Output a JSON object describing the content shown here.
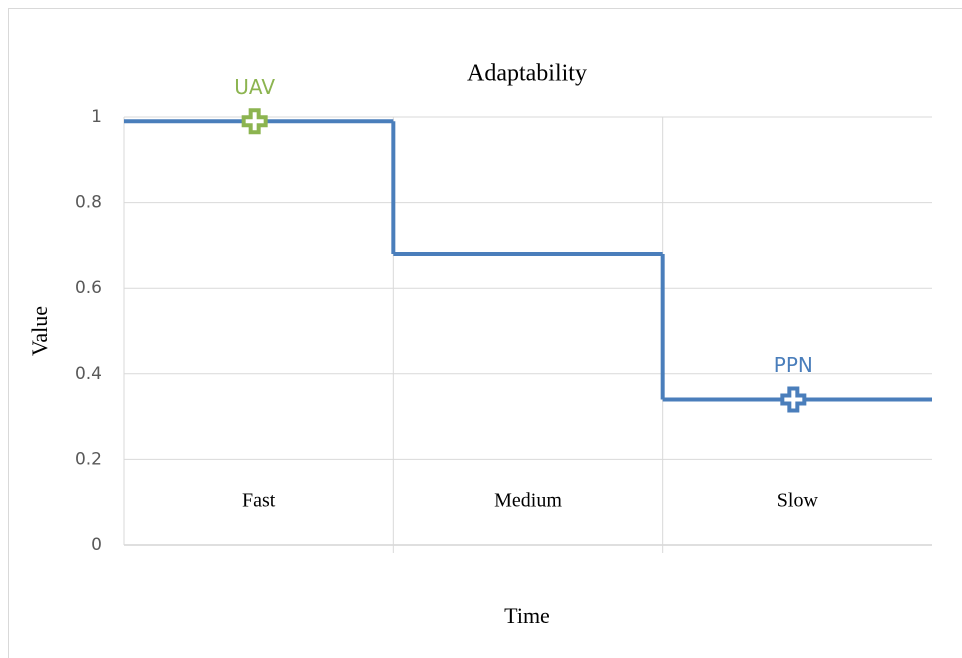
{
  "chart_data": {
    "type": "step",
    "title": "Adaptability",
    "x_label": "Time",
    "y_label": "Value",
    "categories": [
      "Fast",
      "Medium",
      "Slow"
    ],
    "series": [
      {
        "name": "Adaptability",
        "color": "#4a7ebb",
        "values": [
          0.99,
          0.68,
          0.34
        ]
      }
    ],
    "points": [
      {
        "label": "UAV",
        "category": "Fast",
        "value": 0.99,
        "color": "#8cb450"
      },
      {
        "label": "PPN",
        "category": "Slow",
        "value": 0.34,
        "color": "#4a7ebb"
      }
    ],
    "ylim": [
      0,
      1
    ],
    "yticks": [
      0,
      0.2,
      0.4,
      0.6,
      0.8,
      1
    ],
    "grid": true
  }
}
